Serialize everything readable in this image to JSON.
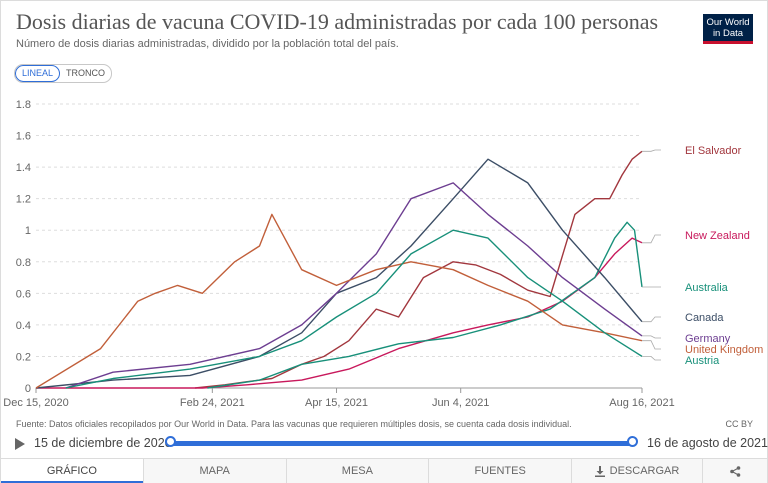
{
  "title": "Dosis diarias de vacuna COVID-19 administradas por cada 100 personas",
  "subtitle": "Número de dosis diarias administradas, dividido por la población total del país.",
  "logo": {
    "line1": "Our World",
    "line2": "in Data"
  },
  "scale_toggle": {
    "options": [
      "LINEAL",
      "TRONCO"
    ],
    "selected": "LINEAL"
  },
  "source": "Fuente: Datos oficiales recopilados por Our World in Data. Para las vacunas que requieren múltiples dosis, se cuenta cada dosis individual.",
  "license": "CC BY",
  "timeline": {
    "start_label": "15 de diciembre de 2020",
    "end_label": "16 de agosto de 2021"
  },
  "tabs": {
    "chart": "GRÁFICO",
    "map": "MAPA",
    "table": "MESA",
    "sources": "FUENTES",
    "download": "DESCARGAR"
  },
  "colors": {
    "El Salvador": "#a2373e",
    "New Zealand": "#c8195c",
    "Australia": "#18907a",
    "Canada": "#3c4e66",
    "Germany": "#6d3e91",
    "United Kingdom": "#c15f3a",
    "Austria": "#18907a",
    "accent": "#2f6ed8"
  },
  "chart_data": {
    "type": "line",
    "x_start": "2020-12-15",
    "x_end": "2021-08-16",
    "x_tick_labels": [
      "Dec 15, 2020",
      "Feb 24, 2021",
      "Apr 15, 2021",
      "Jun 4, 2021",
      "Aug 16, 2021"
    ],
    "x_tick_dates": [
      "2020-12-15",
      "2021-02-24",
      "2021-04-15",
      "2021-06-04",
      "2021-08-16"
    ],
    "y_ticks": [
      0,
      0.2,
      0.4,
      0.6,
      0.8,
      1,
      1.2,
      1.4,
      1.6,
      1.8
    ],
    "y_tick_labels": [
      "0",
      "0.2",
      "0.4",
      "0.6",
      "0.8",
      "1",
      "1.2",
      "1.4",
      "1.6",
      "1.8"
    ],
    "ylim": [
      0,
      1.8
    ],
    "grid": "horizontal dashed",
    "legend": "right, labels at line ends",
    "series": [
      {
        "name": "El Salvador",
        "dates": [
          "2021-02-17",
          "2021-03-01",
          "2021-03-10",
          "2021-03-20",
          "2021-04-01",
          "2021-04-10",
          "2021-04-20",
          "2021-05-01",
          "2021-05-10",
          "2021-05-20",
          "2021-06-01",
          "2021-06-10",
          "2021-06-20",
          "2021-07-01",
          "2021-07-10",
          "2021-07-20",
          "2021-07-28",
          "2021-08-03",
          "2021-08-08",
          "2021-08-12",
          "2021-08-16"
        ],
        "values": [
          0.0,
          0.02,
          0.04,
          0.06,
          0.15,
          0.2,
          0.3,
          0.5,
          0.45,
          0.7,
          0.8,
          0.78,
          0.72,
          0.62,
          0.58,
          1.1,
          1.2,
          1.2,
          1.35,
          1.45,
          1.5
        ]
      },
      {
        "name": "New Zealand",
        "dates": [
          "2020-12-15",
          "2021-02-20",
          "2021-03-10",
          "2021-04-01",
          "2021-04-20",
          "2021-05-10",
          "2021-06-01",
          "2021-06-15",
          "2021-07-01",
          "2021-07-15",
          "2021-07-28",
          "2021-08-05",
          "2021-08-12",
          "2021-08-16"
        ],
        "values": [
          0.0,
          0.0,
          0.02,
          0.05,
          0.12,
          0.25,
          0.35,
          0.4,
          0.45,
          0.55,
          0.7,
          0.85,
          0.95,
          0.92
        ]
      },
      {
        "name": "Australia",
        "dates": [
          "2021-02-22",
          "2021-03-15",
          "2021-04-01",
          "2021-04-20",
          "2021-05-10",
          "2021-06-01",
          "2021-06-20",
          "2021-07-10",
          "2021-07-28",
          "2021-08-05",
          "2021-08-10",
          "2021-08-13",
          "2021-08-16"
        ],
        "values": [
          0.0,
          0.05,
          0.15,
          0.2,
          0.28,
          0.32,
          0.4,
          0.5,
          0.7,
          0.95,
          1.05,
          1.0,
          0.64
        ]
      },
      {
        "name": "Canada",
        "dates": [
          "2020-12-15",
          "2021-01-15",
          "2021-02-15",
          "2021-03-15",
          "2021-04-01",
          "2021-04-15",
          "2021-05-01",
          "2021-05-15",
          "2021-06-01",
          "2021-06-15",
          "2021-07-01",
          "2021-07-15",
          "2021-08-01",
          "2021-08-16"
        ],
        "values": [
          0.0,
          0.05,
          0.08,
          0.2,
          0.35,
          0.6,
          0.7,
          0.9,
          1.2,
          1.45,
          1.3,
          1.0,
          0.7,
          0.42
        ]
      },
      {
        "name": "Germany",
        "dates": [
          "2020-12-27",
          "2021-01-15",
          "2021-02-15",
          "2021-03-15",
          "2021-04-01",
          "2021-04-15",
          "2021-05-01",
          "2021-05-15",
          "2021-06-01",
          "2021-06-15",
          "2021-07-01",
          "2021-07-15",
          "2021-08-01",
          "2021-08-16"
        ],
        "values": [
          0.0,
          0.1,
          0.15,
          0.25,
          0.4,
          0.6,
          0.85,
          1.2,
          1.3,
          1.1,
          0.9,
          0.7,
          0.5,
          0.33
        ]
      },
      {
        "name": "United Kingdom",
        "dates": [
          "2020-12-15",
          "2021-01-10",
          "2021-01-20",
          "2021-01-25",
          "2021-02-01",
          "2021-02-10",
          "2021-02-20",
          "2021-03-05",
          "2021-03-15",
          "2021-03-20",
          "2021-04-01",
          "2021-04-15",
          "2021-05-01",
          "2021-05-15",
          "2021-06-01",
          "2021-06-15",
          "2021-07-01",
          "2021-07-15",
          "2021-08-01",
          "2021-08-16"
        ],
        "values": [
          0.0,
          0.25,
          0.45,
          0.55,
          0.6,
          0.65,
          0.6,
          0.8,
          0.9,
          1.1,
          0.75,
          0.65,
          0.75,
          0.8,
          0.75,
          0.65,
          0.55,
          0.4,
          0.35,
          0.3
        ]
      },
      {
        "name": "Austria",
        "dates": [
          "2020-12-27",
          "2021-01-15",
          "2021-02-15",
          "2021-03-15",
          "2021-04-01",
          "2021-04-15",
          "2021-05-01",
          "2021-05-15",
          "2021-06-01",
          "2021-06-15",
          "2021-07-01",
          "2021-07-15",
          "2021-08-01",
          "2021-08-16"
        ],
        "values": [
          0.0,
          0.06,
          0.12,
          0.2,
          0.3,
          0.45,
          0.6,
          0.85,
          1.0,
          0.95,
          0.7,
          0.55,
          0.35,
          0.2
        ]
      }
    ]
  }
}
